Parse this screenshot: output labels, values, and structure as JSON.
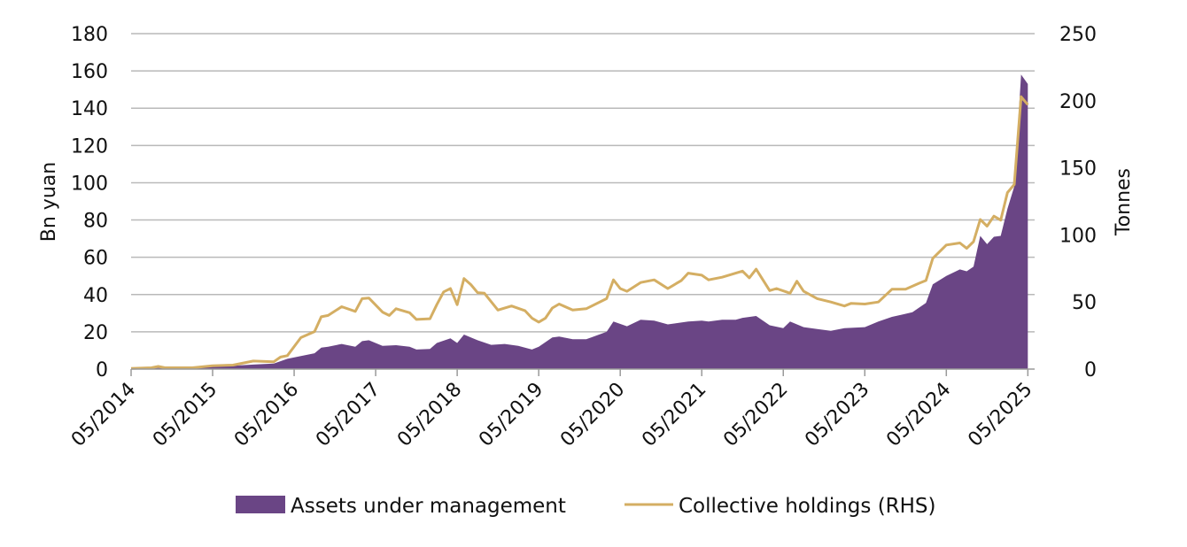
{
  "chart_data": {
    "type": "area",
    "title": "",
    "y_left_label": "Bn yuan",
    "y_right_label": "Tonnes",
    "y_left_ticks": [
      "0",
      "20",
      "40",
      "60",
      "80",
      "100",
      "120",
      "140",
      "160",
      "180"
    ],
    "y_right_ticks": [
      "0",
      "50",
      "100",
      "150",
      "200",
      "250"
    ],
    "x_ticks": [
      "05/2014",
      "05/2015",
      "05/2016",
      "05/2017",
      "05/2018",
      "05/2019",
      "05/2020",
      "05/2021",
      "05/2022",
      "05/2023",
      "05/2024",
      "05/2025"
    ],
    "y_left_range": [
      0,
      180
    ],
    "y_right_range": [
      0,
      250
    ],
    "x_range": [
      "2014-05",
      "2025-06"
    ],
    "grid": "horizontal",
    "legend_position": "bottom",
    "series": [
      {
        "name": "Assets under management",
        "type": "area",
        "axis": "left",
        "color": "#6a4585",
        "points": [
          [
            "2014-05",
            0.3
          ],
          [
            "2014-08",
            0.6
          ],
          [
            "2014-11",
            0.8
          ],
          [
            "2015-02",
            1.0
          ],
          [
            "2015-05",
            1.2
          ],
          [
            "2015-08",
            1.8
          ],
          [
            "2015-11",
            2.4
          ],
          [
            "2016-02",
            3.0
          ],
          [
            "2016-04",
            5.5
          ],
          [
            "2016-06",
            7.0
          ],
          [
            "2016-08",
            8.5
          ],
          [
            "2016-09",
            11.5
          ],
          [
            "2016-10",
            12.0
          ],
          [
            "2016-12",
            13.5
          ],
          [
            "2017-02",
            12.0
          ],
          [
            "2017-03",
            15.0
          ],
          [
            "2017-04",
            15.5
          ],
          [
            "2017-06",
            12.5
          ],
          [
            "2017-08",
            12.8
          ],
          [
            "2017-10",
            12.0
          ],
          [
            "2017-11",
            10.5
          ],
          [
            "2018-01",
            10.8
          ],
          [
            "2018-02",
            14.0
          ],
          [
            "2018-04",
            16.5
          ],
          [
            "2018-05",
            14.0
          ],
          [
            "2018-06",
            18.5
          ],
          [
            "2018-08",
            15.5
          ],
          [
            "2018-10",
            13.0
          ],
          [
            "2018-12",
            13.5
          ],
          [
            "2019-02",
            12.5
          ],
          [
            "2019-04",
            10.5
          ],
          [
            "2019-05",
            12.0
          ],
          [
            "2019-07",
            17.0
          ],
          [
            "2019-08",
            17.5
          ],
          [
            "2019-10",
            16.0
          ],
          [
            "2019-12",
            16.0
          ],
          [
            "2020-03",
            20.0
          ],
          [
            "2020-04",
            25.5
          ],
          [
            "2020-06",
            23.0
          ],
          [
            "2020-08",
            26.5
          ],
          [
            "2020-10",
            26.0
          ],
          [
            "2020-12",
            24.0
          ],
          [
            "2021-03",
            25.5
          ],
          [
            "2021-05",
            26.0
          ],
          [
            "2021-06",
            25.5
          ],
          [
            "2021-08",
            26.5
          ],
          [
            "2021-10",
            26.5
          ],
          [
            "2021-11",
            27.5
          ],
          [
            "2022-01",
            28.5
          ],
          [
            "2022-03",
            23.5
          ],
          [
            "2022-05",
            22.0
          ],
          [
            "2022-06",
            25.5
          ],
          [
            "2022-08",
            22.5
          ],
          [
            "2022-10",
            21.5
          ],
          [
            "2022-12",
            20.5
          ],
          [
            "2023-02",
            22.0
          ],
          [
            "2023-05",
            22.5
          ],
          [
            "2023-07",
            25.5
          ],
          [
            "2023-09",
            28.0
          ],
          [
            "2023-12",
            30.5
          ],
          [
            "2024-02",
            35.5
          ],
          [
            "2024-03",
            45.5
          ],
          [
            "2024-05",
            50.0
          ],
          [
            "2024-07",
            53.5
          ],
          [
            "2024-08",
            52.5
          ],
          [
            "2024-09",
            55.0
          ],
          [
            "2024-10",
            71.5
          ],
          [
            "2024-11",
            67.0
          ],
          [
            "2024-12",
            71.0
          ],
          [
            "2025-01",
            71.5
          ],
          [
            "2025-02",
            86.0
          ],
          [
            "2025-03",
            98.0
          ],
          [
            "2025-04",
            158.0
          ],
          [
            "2025-05",
            153.0
          ]
        ]
      },
      {
        "name": "Collective holdings (RHS)",
        "type": "line",
        "axis": "right",
        "color": "#d4ae63",
        "points": [
          [
            "2014-05",
            0.5
          ],
          [
            "2014-08",
            1.0
          ],
          [
            "2014-09",
            2.0
          ],
          [
            "2014-10",
            1.0
          ],
          [
            "2014-12",
            1.0
          ],
          [
            "2015-02",
            1.0
          ],
          [
            "2015-05",
            2.5
          ],
          [
            "2015-08",
            3.0
          ],
          [
            "2015-11",
            6.0
          ],
          [
            "2016-02",
            5.5
          ],
          [
            "2016-03",
            9.0
          ],
          [
            "2016-04",
            10.0
          ],
          [
            "2016-06",
            23.5
          ],
          [
            "2016-08",
            28.0
          ],
          [
            "2016-09",
            39.0
          ],
          [
            "2016-10",
            40.0
          ],
          [
            "2016-12",
            46.5
          ],
          [
            "2017-02",
            43.0
          ],
          [
            "2017-03",
            52.5
          ],
          [
            "2017-04",
            53.0
          ],
          [
            "2017-06",
            42.5
          ],
          [
            "2017-07",
            40.0
          ],
          [
            "2017-08",
            45.0
          ],
          [
            "2017-10",
            42.0
          ],
          [
            "2017-11",
            37.0
          ],
          [
            "2018-01",
            37.5
          ],
          [
            "2018-02",
            48.0
          ],
          [
            "2018-03",
            57.5
          ],
          [
            "2018-04",
            60.0
          ],
          [
            "2018-05",
            48.0
          ],
          [
            "2018-06",
            67.5
          ],
          [
            "2018-07",
            63.0
          ],
          [
            "2018-08",
            57.0
          ],
          [
            "2018-09",
            56.5
          ],
          [
            "2018-11",
            44.0
          ],
          [
            "2019-01",
            47.0
          ],
          [
            "2019-03",
            43.5
          ],
          [
            "2019-04",
            38.0
          ],
          [
            "2019-05",
            35.0
          ],
          [
            "2019-06",
            38.0
          ],
          [
            "2019-07",
            45.5
          ],
          [
            "2019-08",
            48.5
          ],
          [
            "2019-10",
            44.0
          ],
          [
            "2019-12",
            45.0
          ],
          [
            "2020-03",
            52.5
          ],
          [
            "2020-04",
            66.5
          ],
          [
            "2020-05",
            60.0
          ],
          [
            "2020-06",
            58.0
          ],
          [
            "2020-08",
            64.5
          ],
          [
            "2020-10",
            66.5
          ],
          [
            "2020-12",
            60.0
          ],
          [
            "2021-02",
            66.0
          ],
          [
            "2021-03",
            71.5
          ],
          [
            "2021-05",
            70.0
          ],
          [
            "2021-06",
            66.5
          ],
          [
            "2021-08",
            68.5
          ],
          [
            "2021-10",
            71.5
          ],
          [
            "2021-11",
            73.0
          ],
          [
            "2021-12",
            68.0
          ],
          [
            "2022-01",
            74.5
          ],
          [
            "2022-03",
            58.5
          ],
          [
            "2022-04",
            60.0
          ],
          [
            "2022-06",
            56.5
          ],
          [
            "2022-07",
            65.5
          ],
          [
            "2022-08",
            58.0
          ],
          [
            "2022-10",
            52.5
          ],
          [
            "2022-12",
            50.0
          ],
          [
            "2023-02",
            47.0
          ],
          [
            "2023-03",
            49.0
          ],
          [
            "2023-05",
            48.5
          ],
          [
            "2023-07",
            50.0
          ],
          [
            "2023-09",
            59.5
          ],
          [
            "2023-11",
            59.5
          ],
          [
            "2024-01",
            64.0
          ],
          [
            "2024-02",
            66.0
          ],
          [
            "2024-03",
            82.5
          ],
          [
            "2024-05",
            92.5
          ],
          [
            "2024-07",
            94.0
          ],
          [
            "2024-08",
            90.0
          ],
          [
            "2024-09",
            95.0
          ],
          [
            "2024-10",
            111.5
          ],
          [
            "2024-11",
            106.5
          ],
          [
            "2024-12",
            114.0
          ],
          [
            "2025-01",
            111.0
          ],
          [
            "2025-02",
            131.5
          ],
          [
            "2025-03",
            137.5
          ],
          [
            "2025-04",
            203.0
          ],
          [
            "2025-05",
            197.0
          ]
        ]
      }
    ]
  }
}
